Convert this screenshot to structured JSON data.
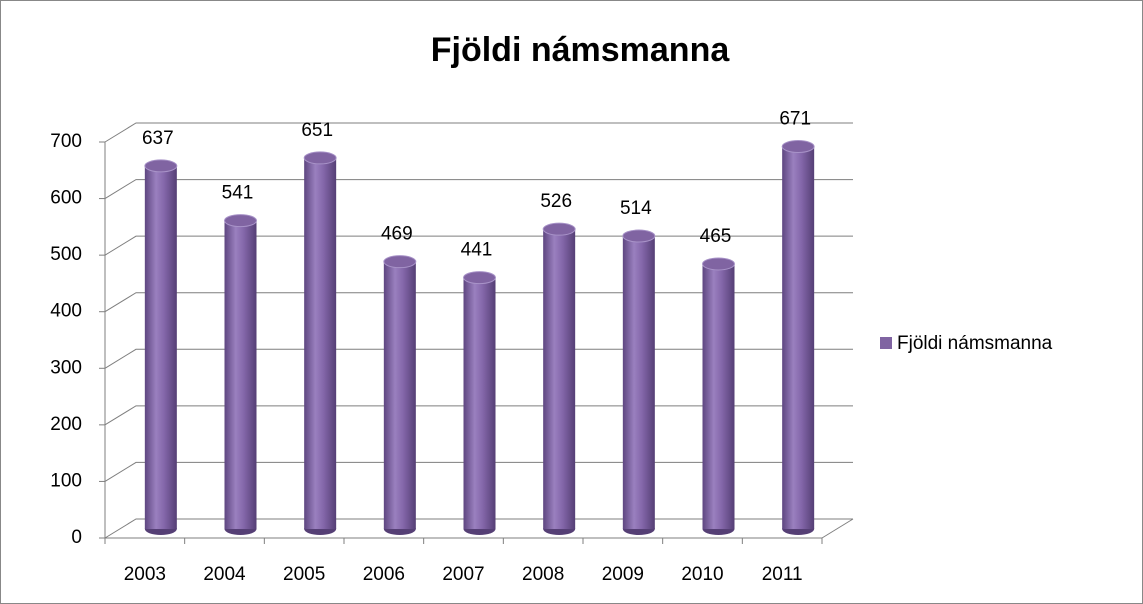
{
  "chart_data": {
    "type": "bar",
    "title": "Fjöldi námsmanna",
    "categories": [
      "2003",
      "2004",
      "2005",
      "2006",
      "2007",
      "2008",
      "2009",
      "2010",
      "2011"
    ],
    "series": [
      {
        "name": "Fjöldi námsmanna",
        "color": "#8064a2",
        "values": [
          637,
          541,
          651,
          469,
          441,
          526,
          514,
          465,
          671
        ]
      }
    ],
    "ylim": [
      0,
      700
    ],
    "yticks": [
      0,
      100,
      200,
      300,
      400,
      500,
      600,
      700
    ],
    "grid": true,
    "legend": "right"
  }
}
